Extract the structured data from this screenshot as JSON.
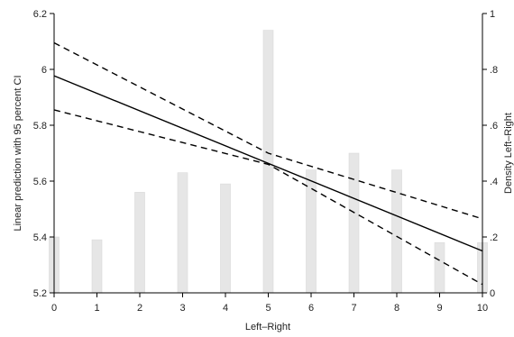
{
  "chart_data": {
    "type": "bar",
    "xlabel": "Left–Right",
    "ylabel": "Linear prediction with 95 percent CI",
    "y2label": "Density Left–Right",
    "xlim": [
      0,
      10
    ],
    "ylim": [
      5.2,
      6.2
    ],
    "y2lim": [
      0,
      1
    ],
    "xticks": [
      "0",
      "1",
      "2",
      "3",
      "4",
      "5",
      "6",
      "7",
      "8",
      "9",
      "10"
    ],
    "yticks": [
      "5.2",
      "5.4",
      "5.6",
      "5.8",
      "6",
      "6.2"
    ],
    "y2ticks": [
      "0",
      ".2",
      ".4",
      ".6",
      ".8",
      "1"
    ],
    "grid": false,
    "bar_color": "#e6e6e6",
    "line_color": "#000000",
    "bars": {
      "x": [
        0,
        1,
        2,
        3,
        4,
        5,
        6,
        7,
        8,
        9,
        10
      ],
      "density": [
        0.2,
        0.19,
        0.36,
        0.43,
        0.39,
        0.94,
        0.44,
        0.5,
        0.44,
        0.18,
        0.18
      ]
    },
    "series": [
      {
        "style": "solid",
        "x": [
          0,
          10
        ],
        "values": [
          5.977,
          5.35
        ]
      },
      {
        "style": "dashed",
        "x": [
          0,
          5,
          10
        ],
        "values": [
          6.095,
          5.7,
          5.465
        ]
      },
      {
        "style": "dashed",
        "x": [
          0,
          5,
          10
        ],
        "values": [
          5.855,
          5.66,
          5.23
        ]
      }
    ]
  }
}
